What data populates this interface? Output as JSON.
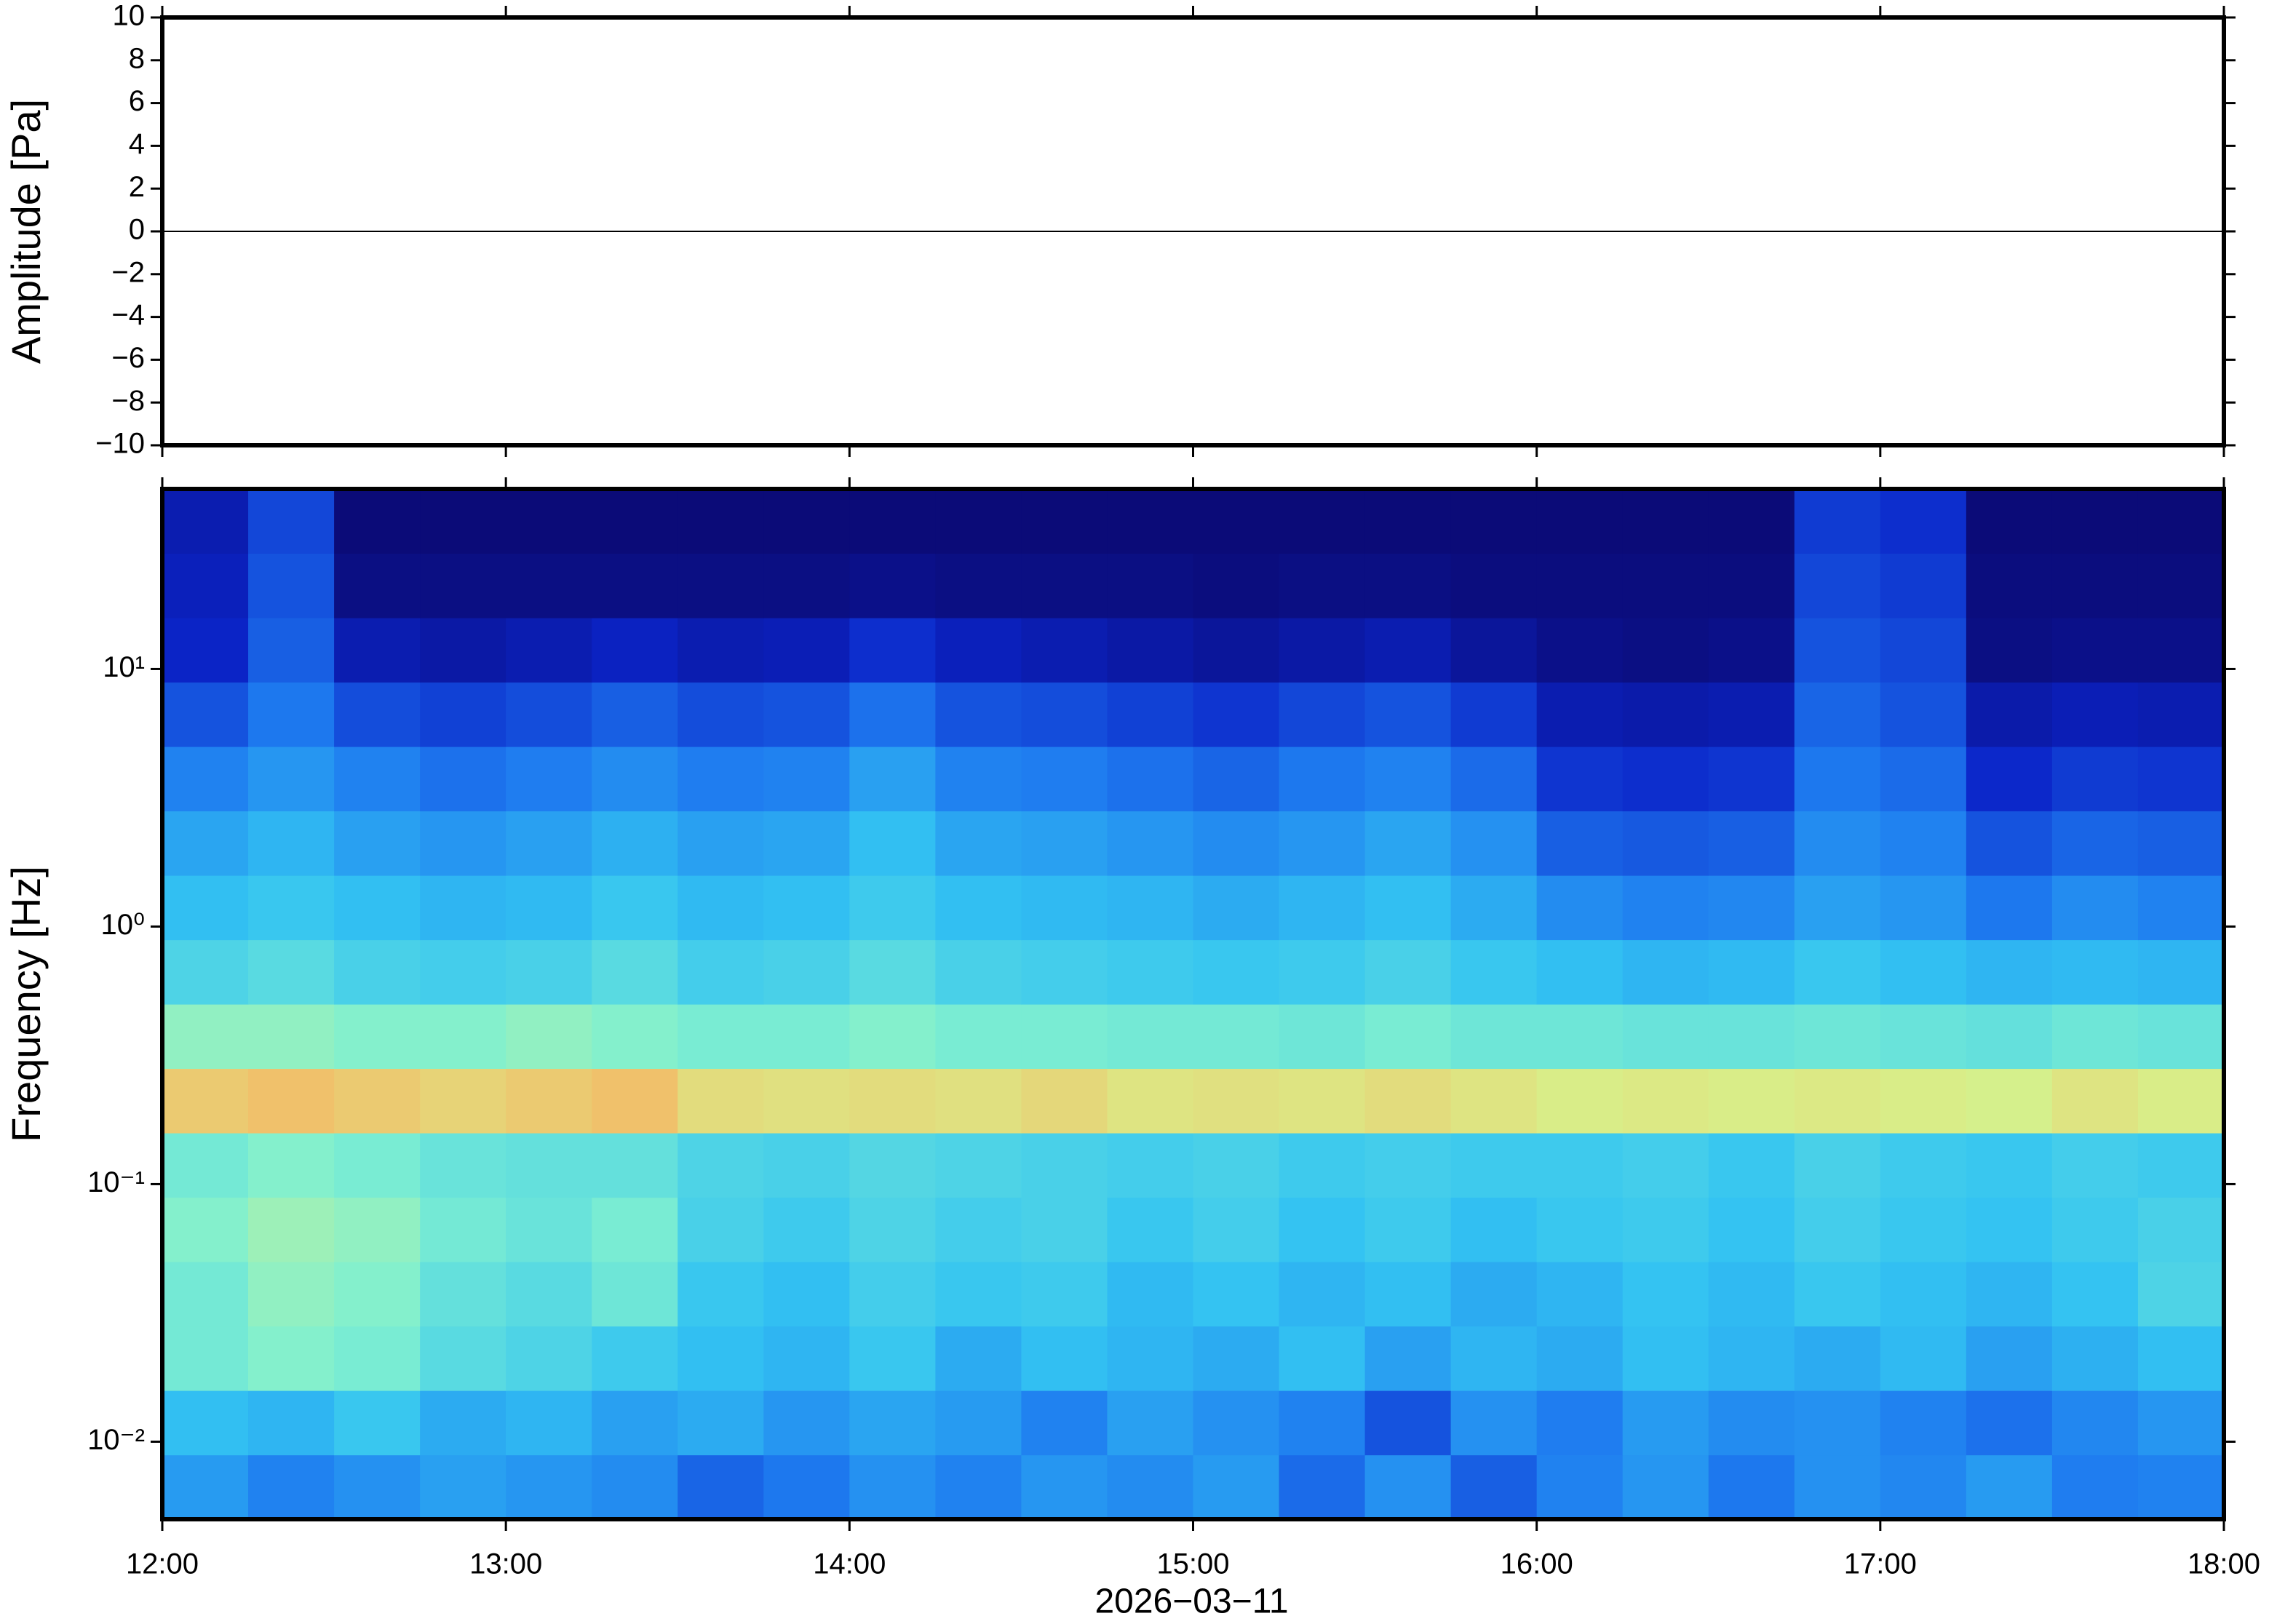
{
  "chart_data": [
    {
      "type": "line",
      "ylabel": "Amplitude [Pa]",
      "xlim": [
        12,
        18
      ],
      "xticks": [
        12,
        13,
        14,
        15,
        16,
        17,
        18
      ],
      "ylim": [
        -10,
        10
      ],
      "yticks": [
        {
          "value": -10,
          "label": "−10"
        },
        {
          "value": -8,
          "label": "−8"
        },
        {
          "value": -6,
          "label": "−6"
        },
        {
          "value": -4,
          "label": "−4"
        },
        {
          "value": -2,
          "label": "−2"
        },
        0,
        2,
        4,
        6,
        8,
        10
      ],
      "x": [
        12,
        13,
        14,
        15,
        16,
        17,
        18
      ],
      "values": [
        0,
        0,
        0,
        0,
        0,
        0,
        0
      ],
      "color": "#000000"
    },
    {
      "type": "heatmap",
      "ylabel": "Frequency [Hz]",
      "xlabel": "2026−03−11",
      "ylog": true,
      "xlim": [
        12,
        18
      ],
      "xticks": [
        {
          "value": 12,
          "label": "12:00"
        },
        {
          "value": 13,
          "label": "13:00"
        },
        {
          "value": 14,
          "label": "14:00"
        },
        {
          "value": 15,
          "label": "15:00"
        },
        {
          "value": 16,
          "label": "16:00"
        },
        {
          "value": 17,
          "label": "17:00"
        },
        {
          "value": 18,
          "label": "18:00"
        }
      ],
      "ylim": [
        0.005,
        50
      ],
      "yticks": [
        {
          "value": 0.01,
          "label": "10⁻²"
        },
        {
          "value": 0.1,
          "label": "10⁻¹"
        },
        {
          "value": 1,
          "label": "10⁰"
        },
        {
          "value": 10,
          "label": "10¹"
        }
      ],
      "xbins": [
        12,
        12.25,
        12.5,
        12.75,
        13,
        13.25,
        13.5,
        13.75,
        14,
        14.25,
        14.5,
        14.75,
        15,
        15.25,
        15.5,
        15.75,
        16,
        16.25,
        16.5,
        16.75,
        17,
        17.25,
        17.5,
        17.75,
        18
      ],
      "ybins": [
        0.005,
        0.00889,
        0.01581,
        0.02812,
        0.05,
        0.08891,
        0.1581,
        0.2812,
        0.5,
        0.8891,
        1.581,
        2.812,
        5,
        8.891,
        15.81,
        28.12,
        50
      ],
      "zlim": [
        0,
        1
      ],
      "colormap": [
        "#0b0b78",
        "#0b24c8",
        "#1e7bf0",
        "#33c3f2",
        "#7ff0d0",
        "#d8f08a",
        "#f8b060",
        "#e85030"
      ],
      "z": [
        [
          0.35,
          0.3,
          0.33,
          0.36,
          0.34,
          0.32,
          0.25,
          0.28,
          0.33,
          0.3,
          0.34,
          0.32,
          0.35,
          0.26,
          0.33,
          0.24,
          0.3,
          0.34,
          0.28,
          0.33,
          0.31,
          0.35,
          0.29,
          0.3
        ],
        [
          0.42,
          0.4,
          0.44,
          0.38,
          0.4,
          0.36,
          0.38,
          0.34,
          0.37,
          0.35,
          0.3,
          0.36,
          0.33,
          0.3,
          0.22,
          0.33,
          0.29,
          0.35,
          0.32,
          0.33,
          0.3,
          0.27,
          0.31,
          0.34
        ],
        [
          0.55,
          0.58,
          0.56,
          0.5,
          0.48,
          0.45,
          0.42,
          0.4,
          0.44,
          0.38,
          0.42,
          0.4,
          0.38,
          0.42,
          0.36,
          0.4,
          0.38,
          0.42,
          0.4,
          0.38,
          0.41,
          0.36,
          0.39,
          0.42
        ],
        [
          0.55,
          0.6,
          0.58,
          0.52,
          0.5,
          0.54,
          0.44,
          0.42,
          0.46,
          0.44,
          0.45,
          0.41,
          0.43,
          0.4,
          0.42,
          0.38,
          0.4,
          0.43,
          0.41,
          0.44,
          0.42,
          0.4,
          0.43,
          0.48
        ],
        [
          0.58,
          0.62,
          0.6,
          0.55,
          0.53,
          0.56,
          0.47,
          0.45,
          0.48,
          0.46,
          0.47,
          0.44,
          0.46,
          0.43,
          0.45,
          0.42,
          0.44,
          0.45,
          0.43,
          0.46,
          0.44,
          0.43,
          0.45,
          0.47
        ],
        [
          0.55,
          0.58,
          0.56,
          0.53,
          0.52,
          0.52,
          0.48,
          0.47,
          0.49,
          0.48,
          0.47,
          0.46,
          0.47,
          0.45,
          0.46,
          0.45,
          0.45,
          0.46,
          0.44,
          0.47,
          0.45,
          0.44,
          0.46,
          0.45
        ],
        [
          0.8,
          0.82,
          0.8,
          0.78,
          0.8,
          0.82,
          0.76,
          0.75,
          0.76,
          0.75,
          0.77,
          0.74,
          0.75,
          0.74,
          0.76,
          0.74,
          0.72,
          0.73,
          0.72,
          0.73,
          0.72,
          0.71,
          0.74,
          0.72
        ],
        [
          0.6,
          0.6,
          0.58,
          0.58,
          0.6,
          0.58,
          0.56,
          0.56,
          0.58,
          0.56,
          0.56,
          0.55,
          0.55,
          0.54,
          0.56,
          0.54,
          0.54,
          0.53,
          0.53,
          0.54,
          0.53,
          0.52,
          0.54,
          0.53
        ],
        [
          0.48,
          0.5,
          0.47,
          0.46,
          0.47,
          0.5,
          0.46,
          0.47,
          0.5,
          0.47,
          0.46,
          0.45,
          0.44,
          0.45,
          0.47,
          0.44,
          0.42,
          0.4,
          0.41,
          0.44,
          0.42,
          0.4,
          0.41,
          0.4
        ],
        [
          0.42,
          0.44,
          0.42,
          0.4,
          0.41,
          0.44,
          0.41,
          0.42,
          0.45,
          0.42,
          0.41,
          0.4,
          0.38,
          0.4,
          0.42,
          0.38,
          0.32,
          0.3,
          0.31,
          0.36,
          0.34,
          0.28,
          0.32,
          0.3
        ],
        [
          0.37,
          0.4,
          0.36,
          0.34,
          0.36,
          0.39,
          0.36,
          0.37,
          0.42,
          0.37,
          0.36,
          0.34,
          0.32,
          0.34,
          0.37,
          0.33,
          0.24,
          0.23,
          0.24,
          0.32,
          0.3,
          0.22,
          0.25,
          0.24
        ],
        [
          0.3,
          0.34,
          0.3,
          0.27,
          0.29,
          0.32,
          0.29,
          0.3,
          0.36,
          0.3,
          0.29,
          0.27,
          0.25,
          0.28,
          0.3,
          0.26,
          0.17,
          0.16,
          0.17,
          0.28,
          0.26,
          0.15,
          0.18,
          0.17
        ],
        [
          0.22,
          0.28,
          0.21,
          0.19,
          0.21,
          0.24,
          0.21,
          0.22,
          0.27,
          0.22,
          0.21,
          0.19,
          0.17,
          0.2,
          0.22,
          0.18,
          0.1,
          0.09,
          0.1,
          0.25,
          0.22,
          0.09,
          0.11,
          0.1
        ],
        [
          0.14,
          0.24,
          0.1,
          0.08,
          0.1,
          0.13,
          0.1,
          0.11,
          0.16,
          0.12,
          0.1,
          0.08,
          0.06,
          0.08,
          0.1,
          0.06,
          0.03,
          0.02,
          0.03,
          0.22,
          0.2,
          0.02,
          0.03,
          0.03
        ],
        [
          0.12,
          0.22,
          0.02,
          0.02,
          0.02,
          0.02,
          0.02,
          0.02,
          0.03,
          0.02,
          0.02,
          0.02,
          0.01,
          0.02,
          0.02,
          0.01,
          0.01,
          0.01,
          0.01,
          0.2,
          0.18,
          0.01,
          0.01,
          0.01
        ],
        [
          0.1,
          0.2,
          0,
          0,
          0,
          0,
          0,
          0,
          0,
          0,
          0,
          0,
          0,
          0,
          0,
          0,
          0,
          0,
          0,
          0.18,
          0.16,
          0,
          0,
          0
        ]
      ]
    }
  ]
}
